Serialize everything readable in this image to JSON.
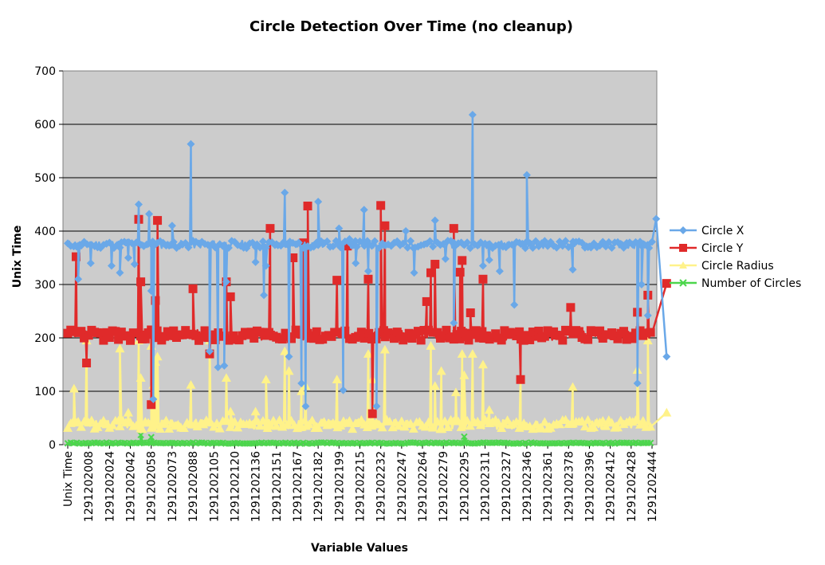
{
  "chart_data": {
    "type": "line",
    "title": "Circle Detection Over Time (no cleanup)",
    "xlabel": "Variable Values",
    "ylabel": "Unix Time",
    "ylim": [
      0,
      700
    ],
    "yticks": [
      0,
      100,
      200,
      300,
      400,
      500,
      600,
      700
    ],
    "grid": "horizontal",
    "legend": "right",
    "categories": [
      "Unix Time",
      "1291202008",
      "1291202024",
      "1291202042",
      "1291202058",
      "1291202073",
      "1291202088",
      "1291202105",
      "1291202120",
      "1291202136",
      "1291202151",
      "1291202167",
      "1291202182",
      "1291202199",
      "1291202215",
      "1291202232",
      "1291202247",
      "1291202264",
      "1291202279",
      "1291202295",
      "1291202311",
      "1291202327",
      "1291202346",
      "1291202361",
      "1291202378",
      "1291202396",
      "1291202412",
      "1291202428",
      "1291202444"
    ],
    "series": [
      {
        "name": "Circle X",
        "color": "#6aa8e8",
        "marker": "diamond",
        "baseline": 375,
        "spikes": [
          [
            0.5,
            310
          ],
          [
            1.1,
            340
          ],
          [
            2.1,
            335
          ],
          [
            2.5,
            322
          ],
          [
            2.9,
            350
          ],
          [
            3.2,
            338
          ],
          [
            3.4,
            450
          ],
          [
            3.9,
            432
          ],
          [
            4.0,
            288
          ],
          [
            4.1,
            85
          ],
          [
            5.0,
            410
          ],
          [
            5.9,
            563
          ],
          [
            6.8,
            175
          ],
          [
            7.2,
            145
          ],
          [
            7.5,
            148
          ],
          [
            7.6,
            305
          ],
          [
            9.0,
            342
          ],
          [
            9.4,
            280
          ],
          [
            9.5,
            335
          ],
          [
            10.4,
            472
          ],
          [
            10.6,
            165
          ],
          [
            11.2,
            115
          ],
          [
            11.4,
            72
          ],
          [
            12.0,
            455
          ],
          [
            13.0,
            405
          ],
          [
            13.2,
            102
          ],
          [
            13.5,
            385
          ],
          [
            13.8,
            340
          ],
          [
            14.2,
            440
          ],
          [
            14.4,
            325
          ],
          [
            14.8,
            72
          ],
          [
            16.2,
            400
          ],
          [
            16.6,
            322
          ],
          [
            17.6,
            420
          ],
          [
            18.1,
            348
          ],
          [
            18.5,
            228
          ],
          [
            19.4,
            618
          ],
          [
            19.9,
            335
          ],
          [
            20.2,
            346
          ],
          [
            20.7,
            325
          ],
          [
            21.4,
            262
          ],
          [
            22.0,
            505
          ],
          [
            24.2,
            328
          ],
          [
            27.3,
            115
          ],
          [
            27.5,
            300
          ],
          [
            27.8,
            242
          ],
          [
            28.2,
            423
          ],
          [
            28.7,
            165
          ]
        ]
      },
      {
        "name": "Circle Y",
        "color": "#e02a2a",
        "marker": "square",
        "baseline": 205,
        "spikes": [
          [
            0.4,
            352
          ],
          [
            0.9,
            153
          ],
          [
            3.4,
            422
          ],
          [
            3.5,
            305
          ],
          [
            4.0,
            75
          ],
          [
            4.2,
            270
          ],
          [
            4.3,
            420
          ],
          [
            6.0,
            292
          ],
          [
            6.8,
            170
          ],
          [
            7.6,
            305
          ],
          [
            7.8,
            277
          ],
          [
            9.7,
            405
          ],
          [
            10.8,
            350
          ],
          [
            11.3,
            378
          ],
          [
            11.5,
            447
          ],
          [
            12.9,
            308
          ],
          [
            13.4,
            372
          ],
          [
            14.4,
            310
          ],
          [
            14.6,
            58
          ],
          [
            15.0,
            448
          ],
          [
            15.2,
            410
          ],
          [
            17.2,
            268
          ],
          [
            17.4,
            322
          ],
          [
            17.6,
            338
          ],
          [
            18.5,
            405
          ],
          [
            18.8,
            323
          ],
          [
            18.9,
            345
          ],
          [
            19.3,
            247
          ],
          [
            19.9,
            310
          ],
          [
            21.7,
            122
          ],
          [
            24.1,
            257
          ],
          [
            27.3,
            248
          ],
          [
            27.8,
            280
          ],
          [
            28.7,
            302
          ]
        ]
      },
      {
        "name": "Circle Radius",
        "color": "#fff28a",
        "marker": "triangle",
        "baseline": 38,
        "spikes": [
          [
            0.3,
            105
          ],
          [
            0.9,
            195
          ],
          [
            2.5,
            180
          ],
          [
            2.9,
            60
          ],
          [
            3.4,
            195
          ],
          [
            3.5,
            125
          ],
          [
            4.0,
            185
          ],
          [
            4.1,
            112
          ],
          [
            4.2,
            155
          ],
          [
            4.3,
            165
          ],
          [
            5.9,
            112
          ],
          [
            6.8,
            195
          ],
          [
            7.6,
            125
          ],
          [
            7.8,
            62
          ],
          [
            9.0,
            62
          ],
          [
            9.5,
            122
          ],
          [
            10.4,
            175
          ],
          [
            10.6,
            138
          ],
          [
            11.2,
            100
          ],
          [
            11.4,
            110
          ],
          [
            12.9,
            122
          ],
          [
            14.4,
            170
          ],
          [
            14.6,
            122
          ],
          [
            15.2,
            178
          ],
          [
            17.4,
            185
          ],
          [
            17.6,
            110
          ],
          [
            17.9,
            138
          ],
          [
            18.6,
            98
          ],
          [
            18.9,
            170
          ],
          [
            19.0,
            130
          ],
          [
            19.4,
            170
          ],
          [
            19.9,
            150
          ],
          [
            20.2,
            65
          ],
          [
            21.7,
            125
          ],
          [
            24.2,
            108
          ],
          [
            27.3,
            140
          ],
          [
            27.8,
            195
          ],
          [
            28.7,
            60
          ]
        ]
      },
      {
        "name": "Number of Circles",
        "color": "#4cd64c",
        "marker": "x",
        "baseline": 3,
        "spikes": [
          [
            3.5,
            18
          ],
          [
            4.0,
            14
          ],
          [
            19.0,
            15
          ]
        ]
      }
    ]
  }
}
